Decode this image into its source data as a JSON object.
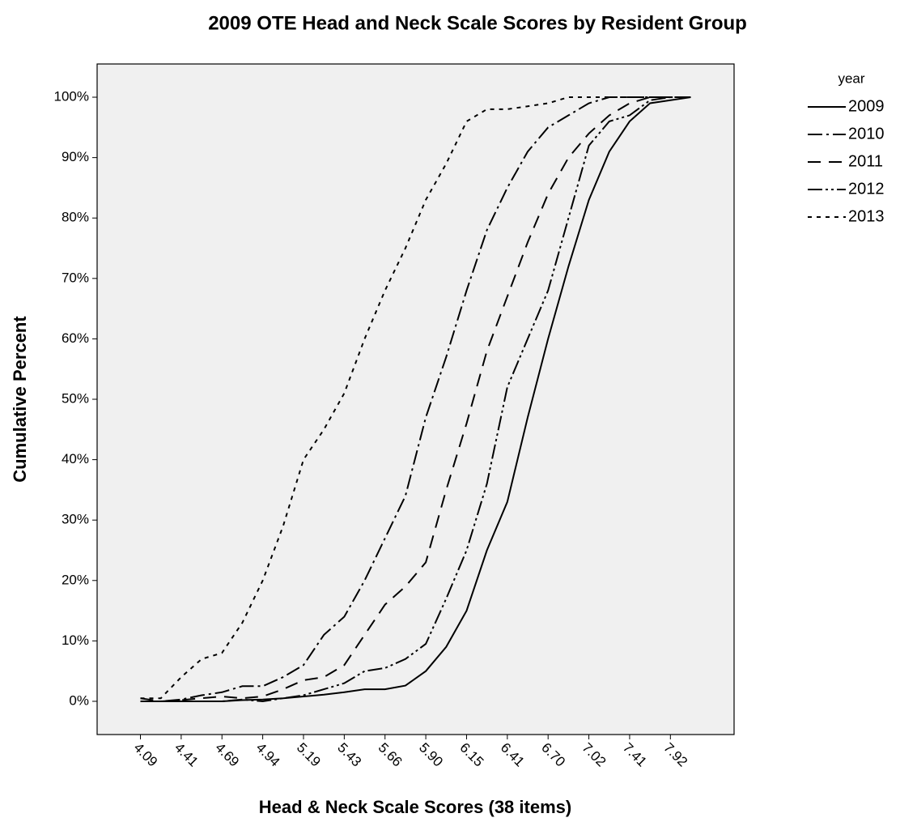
{
  "chart_data": {
    "type": "line",
    "title": "2009 OTE Head and Neck Scale Scores by Resident Group",
    "x_label": "Head & Neck Scale Scores (38 items)",
    "y_label": "Cumulative Percent",
    "legend_title": "year",
    "legend_position": "right",
    "categories": [
      "4.09",
      null,
      "4.41",
      null,
      "4.69",
      null,
      "4.94",
      null,
      "5.19",
      null,
      "5.43",
      null,
      "5.66",
      null,
      "5.90",
      null,
      "6.15",
      null,
      "6.41",
      null,
      "6.70",
      null,
      "7.02",
      null,
      "7.41",
      null,
      "7.92",
      null
    ],
    "series": [
      {
        "name": "2009",
        "color": "#000000",
        "dash": "none",
        "values": [
          0,
          0,
          0,
          0,
          0,
          0.2,
          0.3,
          0.5,
          0.8,
          1.1,
          1.5,
          2,
          2,
          2.6,
          5,
          9,
          15,
          25,
          33,
          47,
          60,
          72,
          83,
          91,
          96,
          99,
          99.5,
          100
        ]
      },
      {
        "name": "2010",
        "color": "#000000",
        "dash": "18,5,3,5",
        "values": [
          0,
          0,
          0.3,
          1,
          1.5,
          2.5,
          2.5,
          4,
          6,
          11,
          14,
          20,
          27,
          34,
          47,
          57,
          68,
          78,
          85,
          91,
          95,
          97,
          99,
          100,
          100,
          100,
          100,
          100
        ]
      },
      {
        "name": "2011",
        "color": "#000000",
        "dash": "16,10",
        "values": [
          0.5,
          0,
          0.2,
          0.5,
          0.8,
          0.5,
          0.8,
          2,
          3.5,
          4,
          6,
          11,
          16,
          19,
          23,
          35,
          46,
          58,
          67,
          76,
          84,
          90,
          94,
          97,
          99,
          100,
          100,
          100
        ]
      },
      {
        "name": "2012",
        "color": "#000000",
        "dash": "18,4,3,4,3,4",
        "values": [
          0,
          0,
          0,
          0,
          0,
          0.3,
          0,
          0.5,
          1,
          2,
          3,
          5,
          5.5,
          7,
          9.5,
          17,
          25,
          36,
          52,
          60,
          68,
          80,
          92,
          96,
          97,
          99.5,
          100,
          100
        ]
      },
      {
        "name": "2013",
        "color": "#000000",
        "dash": "5,6",
        "values": [
          0.5,
          0.5,
          4,
          7,
          8,
          13,
          20,
          29,
          40,
          45,
          51,
          60,
          68,
          75,
          83,
          89,
          96,
          98,
          98,
          98.5,
          99,
          100,
          100,
          100,
          100,
          100,
          100,
          100
        ]
      }
    ],
    "ylim": [
      -5.5,
      105.5
    ],
    "yticks": [
      {
        "value": 0,
        "label": "0%"
      },
      {
        "value": 10,
        "label": "10%"
      },
      {
        "value": 20,
        "label": "20%"
      },
      {
        "value": 30,
        "label": "30%"
      },
      {
        "value": 40,
        "label": "40%"
      },
      {
        "value": 50,
        "label": "50%"
      },
      {
        "value": 60,
        "label": "60%"
      },
      {
        "value": 70,
        "label": "70%"
      },
      {
        "value": 80,
        "label": "80%"
      },
      {
        "value": 90,
        "label": "90%"
      },
      {
        "value": 100,
        "label": "100%"
      }
    ],
    "plot_background": "#f0f0f0"
  }
}
